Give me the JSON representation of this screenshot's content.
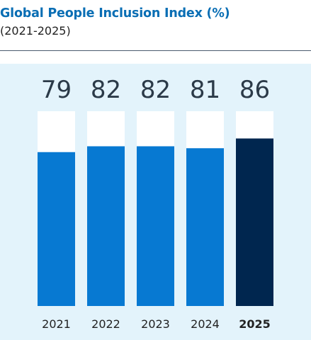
{
  "title": "Global People Inclusion Index (%)",
  "subtitle": "(2021-2025)",
  "colors": {
    "title": "#0a6eb4",
    "bar": "#0779d2",
    "highlight": "#00264f",
    "track": "#ffffff",
    "panel": "#e3f3fb"
  },
  "chart_data": {
    "type": "bar",
    "categories": [
      "2021",
      "2022",
      "2023",
      "2024",
      "2025"
    ],
    "values": [
      79,
      82,
      82,
      81,
      86
    ],
    "highlight_category": "2025",
    "ylim": [
      0,
      100
    ],
    "grid": false
  }
}
